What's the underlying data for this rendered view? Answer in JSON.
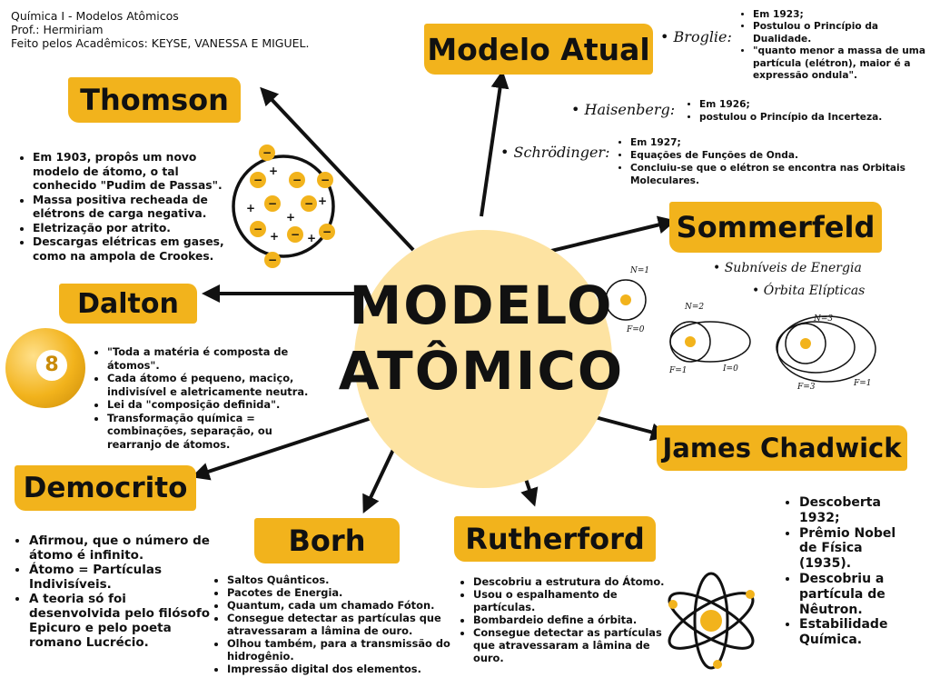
{
  "header": {
    "line1": "Química I - Modelos Atômicos",
    "line2": "Prof.: Hermiriam",
    "line3": "Feito pelos Acadêmicos: KEYSE, VANESSA E MIGUEL."
  },
  "center": {
    "title_line1": "MODELO",
    "title_line2": "ATÔMICO"
  },
  "thomson": {
    "title": "Thomson",
    "items": [
      "Em 1903, propôs um novo modelo de átomo, o tal conhecido \"Pudim de Passas\".",
      "Massa positiva recheada de elétrons de carga negativa.",
      "Eletrização por atrito.",
      "Descargas elétricas em gases, como na ampola de Crookes."
    ]
  },
  "dalton": {
    "title": "Dalton",
    "ball_label": "8",
    "items": [
      "\"Toda a matéria é composta de átomos\".",
      "Cada átomo é pequeno, maciço, indivisível e aletricamente neutra.",
      "Lei da \"composição definida\".",
      "Transformação química = combinações, separação, ou rearranjo de átomos."
    ]
  },
  "democrito": {
    "title": "Democrito",
    "items": [
      "Afirmou, que o número de átomo é infinito.",
      "Átomo = Partículas Indivisíveis.",
      "A teoria só foi desenvolvida pelo filósofo Epicuro e pelo poeta romano Lucrécio."
    ]
  },
  "borh": {
    "title": "Borh",
    "items": [
      "Saltos Quânticos.",
      "Pacotes de Energia.",
      "Quantum, cada um chamado Fóton.",
      "Consegue detectar as partículas que atravessaram a lâmina de ouro.",
      "Olhou também, para a transmissão do hidrogênio.",
      "Impressão digital dos elementos."
    ]
  },
  "rutherford": {
    "title": "Rutherford",
    "items": [
      "Descobriu a estrutura do Átomo.",
      "Usou o espalhamento de partículas.",
      "Bombardeio define a órbita.",
      "Consegue detectar as partículas que atravessaram a lâmina de ouro."
    ]
  },
  "chadwick": {
    "title": "James Chadwick",
    "items": [
      "Descoberta 1932;",
      "Prêmio Nobel de Física (1935).",
      "Descobriu a partícula de Nêutron.",
      "Estabilidade Química."
    ]
  },
  "sommerfeld": {
    "title": "Sommerfeld",
    "notes": [
      "Subníveis de Energia",
      "Órbita Elípticas"
    ],
    "diagram_labels": {
      "n1": "N=1",
      "f0": "F=0",
      "n2": "N=2",
      "f1a": "F=1",
      "i0": "I=0",
      "n3": "N=3",
      "f3": "F=3",
      "f1b": "F=1"
    }
  },
  "modelo_atual": {
    "title": "Modelo Atual",
    "broglie": {
      "name": "Broglie:",
      "items": [
        "Em 1923;",
        "Postulou o Princípio da Dualidade.",
        "\"quanto menor a massa de uma partícula (elétron), maior é a expressão ondula\"."
      ]
    },
    "heisenberg": {
      "name": "Haisenberg:",
      "items": [
        "Em 1926;",
        "postulou o Princípio da Incerteza."
      ]
    },
    "schrodinger": {
      "name": "Schrödinger:",
      "items": [
        "Em 1927;",
        "Equações de Funções de Onda.",
        "Concluiu-se que o elétron se encontra nas Orbitais Moleculares."
      ]
    }
  },
  "thomson_charges": {
    "minus": "−",
    "plus": "+"
  },
  "colors": {
    "accent": "#f2b31c",
    "center_circle": "#fde3a2",
    "ink": "#111111"
  }
}
